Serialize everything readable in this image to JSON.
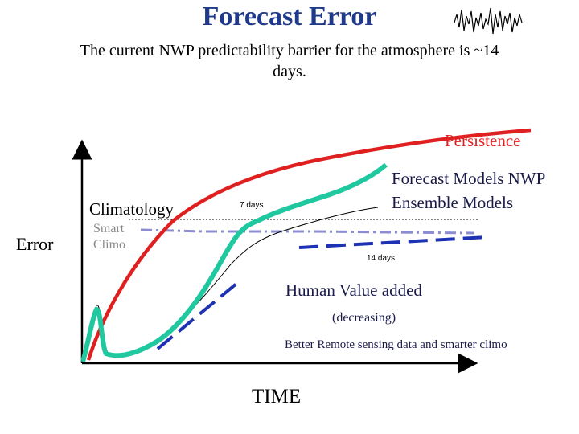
{
  "title": "Forecast Error",
  "subtitle": {
    "line1": "The current NWP predictability barrier for the atmosphere is ~14",
    "line2": "days."
  },
  "labels": {
    "persistence": "Persistence",
    "forecast_models_1": "Forecast Models NWP",
    "forecast_models_2": "Ensemble Models",
    "climatology": "Climatology",
    "error_axis": "Error",
    "smart_climo_1": "Smart",
    "smart_climo_2": "Climo",
    "seven_days": "7 days",
    "fourteen_days": "14 days",
    "human_value": "Human Value added",
    "decreasing": "(decreasing)",
    "better": "Better Remote sensing data and smarter climo",
    "time_axis": "TIME"
  },
  "colors": {
    "persistence": "#e02020",
    "forecast_models": "#20c8a0",
    "human_value": "#1e32b4",
    "smart_climo": "#8c8cd2",
    "title": "#1f3a8a"
  },
  "icons": {
    "logo": "seismograph-squiggle-icon"
  }
}
